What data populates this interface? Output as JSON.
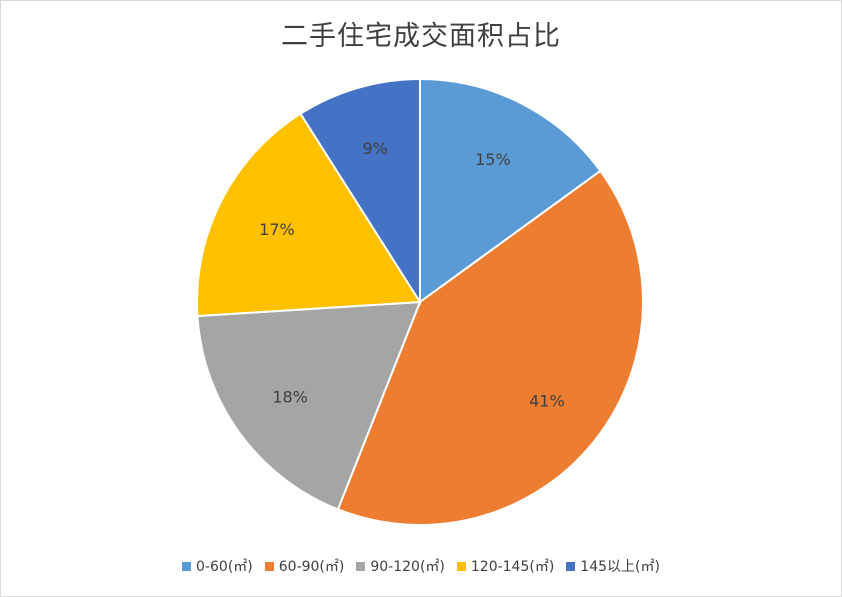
{
  "chart_data": {
    "type": "pie",
    "title": "二手住宅成交面积占比",
    "categories": [
      "0-60(㎡)",
      "60-90(㎡)",
      "90-120(㎡)",
      "120-145(㎡)",
      "145以上(㎡)"
    ],
    "values": [
      15,
      41,
      18,
      17,
      9
    ],
    "labels": [
      "15%",
      "41%",
      "18%",
      "17%",
      "9%"
    ],
    "colors": [
      "#5B9BD5",
      "#ED7D31",
      "#A5A5A5",
      "#FFC000",
      "#4472C4"
    ],
    "legend_position": "bottom",
    "start_angle": "12 o'clock",
    "direction": "clockwise"
  }
}
